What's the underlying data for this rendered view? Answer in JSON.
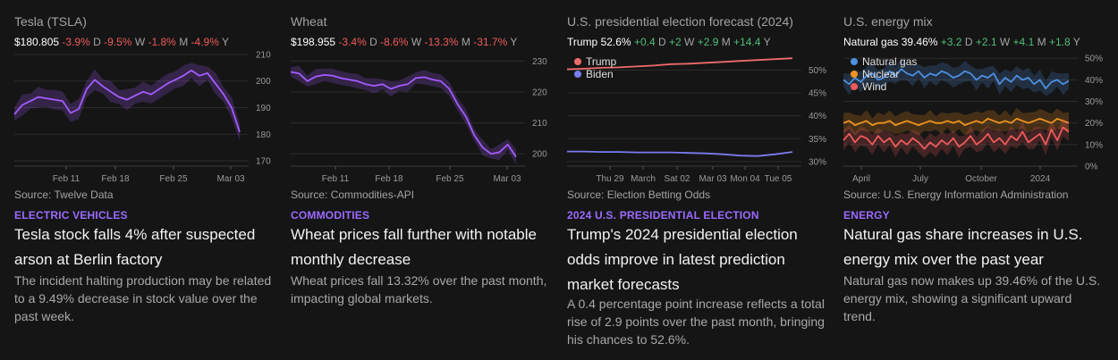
{
  "cards": [
    {
      "title": "Tesla (TSLA)",
      "price": "$180.805",
      "changes": [
        {
          "value": "-3.9%",
          "period": "D",
          "direction": "neg"
        },
        {
          "value": "-9.5%",
          "period": "W",
          "direction": "neg"
        },
        {
          "value": "-1.8%",
          "period": "M",
          "direction": "neg"
        },
        {
          "value": "-4.9%",
          "period": "Y",
          "direction": "neg"
        }
      ],
      "source": "Source: Twelve Data",
      "category": "ELECTRIC VEHICLES",
      "headline": "Tesla stock falls 4% after suspected arson at Berlin factory",
      "summary": "The incident halting production may be related to a 9.49% decrease in stock value over the past week.",
      "chart_data": {
        "type": "line",
        "x_ticks": [
          "Feb 11",
          "Feb 18",
          "Feb 25",
          "Mar 03"
        ],
        "y_ticks": [
          "210",
          "200",
          "190",
          "180",
          "170"
        ],
        "ylim": [
          168,
          211
        ],
        "color": "#a45cff",
        "series": [
          {
            "values": [
              187.5,
              191,
              192.5,
              194,
              193.5,
              193,
              192.5,
              188,
              189.5,
              197,
              200.5,
              198,
              196,
              194,
              193,
              194.5,
              196,
              195,
              197,
              199,
              200.5,
              202,
              204,
              202,
              203,
              199,
              195,
              190,
              180.8
            ]
          }
        ]
      }
    },
    {
      "title": "Wheat",
      "price": "$198.955",
      "changes": [
        {
          "value": "-3.4%",
          "period": "D",
          "direction": "neg"
        },
        {
          "value": "-8.6%",
          "period": "W",
          "direction": "neg"
        },
        {
          "value": "-13.3%",
          "period": "M",
          "direction": "neg"
        },
        {
          "value": "-31.7%",
          "period": "Y",
          "direction": "neg"
        }
      ],
      "source": "Source: Commodities-API",
      "category": "COMMODITIES",
      "headline": "Wheat prices fall further with notable monthly decrease",
      "summary": "Wheat prices fall 13.32% over the past month, impacting global markets.",
      "chart_data": {
        "type": "line",
        "x_ticks": [
          "Feb 11",
          "Feb 18",
          "Feb 25",
          "Mar 03"
        ],
        "y_ticks": [
          "230",
          "220",
          "210",
          "200"
        ],
        "ylim": [
          196,
          233
        ],
        "color": "#a45cff",
        "series": [
          {
            "values": [
              226.5,
              226,
              223.5,
              225,
              225.5,
              225.3,
              224.5,
              224,
              223.5,
              222.5,
              222,
              222.5,
              221,
              222,
              222.5,
              224.5,
              224.8,
              224,
              223.5,
              221,
              216,
              212,
              206,
              202,
              200,
              200.5,
              203,
              199
            ]
          }
        ]
      }
    },
    {
      "title": "U.S. presidential election forecast (2024)",
      "price": "Trump",
      "price_value": "52.6%",
      "changes": [
        {
          "value": "+0.4",
          "period": "D",
          "direction": "pos"
        },
        {
          "value": "+2",
          "period": "W",
          "direction": "pos"
        },
        {
          "value": "+2.9",
          "period": "M",
          "direction": "pos"
        },
        {
          "value": "+14.4",
          "period": "Y",
          "direction": "pos"
        }
      ],
      "source": "Source: Election Betting Odds",
      "category": "2024 U.S. PRESIDENTIAL ELECTION",
      "headline": "Trump's 2024 presidential election odds improve in latest prediction market forecasts",
      "summary": "A 0.4 percentage point increase reflects a total rise of 2.9 points over the past month, bringing his chances to 52.6%.",
      "chart_data": {
        "type": "line",
        "x_ticks": [
          "Thu 29",
          "March",
          "Sat 02",
          "Mar 03",
          "Mon 04",
          "Tue 05"
        ],
        "y_ticks": [
          "50%",
          "45%",
          "40%",
          "35%",
          "30%"
        ],
        "ylim": [
          29,
          54
        ],
        "legend": [
          "Trump",
          "Biden"
        ],
        "series": [
          {
            "name": "Trump",
            "color": "#ef6b6b",
            "values": [
              50.2,
              50.3,
              50.5,
              50.6,
              50.8,
              51,
              51.3,
              51.4,
              51.6,
              51.8,
              52.0,
              52.2,
              52.4,
              52.6
            ]
          },
          {
            "name": "Biden",
            "color": "#7b7bf0",
            "values": [
              32.2,
              32.2,
              32.1,
              32.1,
              32.0,
              32.0,
              32.0,
              31.9,
              31.8,
              31.6,
              31.3,
              31.2,
              31.6,
              32.1
            ]
          }
        ]
      }
    },
    {
      "title": "U.S. energy mix",
      "price": "Natural gas",
      "price_value": "39.46%",
      "changes": [
        {
          "value": "+3.2",
          "period": "D",
          "direction": "pos"
        },
        {
          "value": "+2.1",
          "period": "W",
          "direction": "pos"
        },
        {
          "value": "+4.1",
          "period": "M",
          "direction": "pos"
        },
        {
          "value": "+1.8",
          "period": "Y",
          "direction": "pos"
        }
      ],
      "source": "Source: U.S. Energy Information Administration",
      "category": "ENERGY",
      "headline": "Natural gas share increases in U.S. energy mix over the past year",
      "summary": "Natural gas now makes up 39.46% of the U.S. energy mix, showing a significant upward trend.",
      "chart_data": {
        "type": "line",
        "x_ticks": [
          "April",
          "July",
          "October",
          "2024"
        ],
        "y_ticks": [
          "50%",
          "40%",
          "30%",
          "20%",
          "10%",
          "0%"
        ],
        "ylim": [
          0,
          53
        ],
        "legend": [
          "Natural gas",
          "Nuclear",
          "Wind"
        ],
        "series": [
          {
            "name": "Natural gas",
            "color": "#4d8fe0",
            "values": [
              40,
              38,
              41,
              39,
              42,
              43,
              40,
              41,
              44,
              42,
              45,
              43,
              42,
              44,
              41,
              43,
              42,
              44,
              43,
              41,
              42,
              44,
              43,
              40,
              42,
              41,
              43,
              38,
              41,
              39,
              42,
              40,
              41,
              38,
              40,
              36,
              39,
              40,
              38,
              39.5
            ]
          },
          {
            "name": "Nuclear",
            "color": "#f0931f",
            "values": [
              20,
              21,
              19,
              20,
              21,
              19,
              20,
              20,
              21,
              19,
              20,
              21,
              20,
              19,
              20,
              21,
              20,
              20,
              21,
              20,
              21,
              19,
              20,
              21,
              20,
              22,
              21,
              20,
              21,
              20,
              22,
              21,
              20,
              21,
              22,
              21,
              20,
              22,
              21,
              20
            ]
          },
          {
            "name": "Wind",
            "color": "#ef5b5b",
            "values": [
              12,
              15,
              11,
              14,
              13,
              10,
              14,
              11,
              13,
              9,
              12,
              10,
              13,
              11,
              8,
              11,
              9,
              12,
              10,
              13,
              9,
              11,
              14,
              10,
              12,
              15,
              11,
              13,
              10,
              14,
              12,
              16,
              11,
              13,
              15,
              10,
              17,
              12,
              18,
              16
            ]
          }
        ]
      }
    }
  ]
}
